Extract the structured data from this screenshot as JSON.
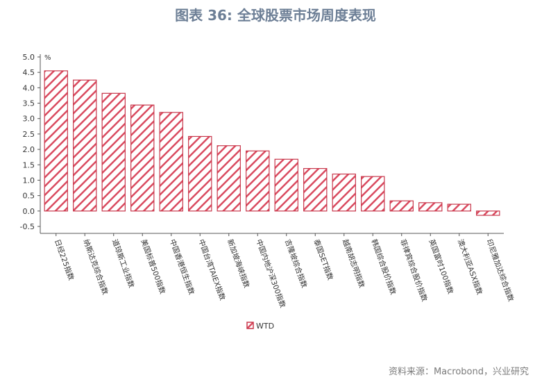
{
  "title": "图表 36: 全球股票市场周度表现",
  "source": "资料来源：Macrobond，兴业研究",
  "chart_data": {
    "type": "bar",
    "unit_label": "%",
    "ylim": [
      -0.5,
      5.0
    ],
    "yticks": [
      "5.0",
      "4.5",
      "4.0",
      "3.5",
      "3.0",
      "2.5",
      "2.0",
      "1.5",
      "1.0",
      "0.5",
      "0.0",
      "-0.5"
    ],
    "categories": [
      "日经225指数",
      "纳斯达克综合指数",
      "道琼斯工业指数",
      "美国标普500指数",
      "中国香港恒生指数",
      "中国台湾TAIEX指数",
      "新加坡海峡指数",
      "中国内地沪深300指数",
      "吉隆坡综合指数",
      "泰国SET指数",
      "越南胡志明指数",
      "韩国综合股价指数",
      "菲律宾综合股价指数",
      "英国富时100指数",
      "澳大利亚ASX指数",
      "印尼雅加达综合指数"
    ],
    "series": [
      {
        "name": "WTD",
        "values": [
          4.55,
          4.25,
          3.82,
          3.44,
          3.2,
          2.42,
          2.12,
          1.95,
          1.68,
          1.38,
          1.2,
          1.12,
          0.33,
          0.27,
          0.22,
          -0.14
        ]
      }
    ],
    "legend_position": "bottom",
    "colors": {
      "bar_stroke": "#c8374b",
      "hatch": "#d94a5f",
      "axis": "#555555"
    }
  }
}
